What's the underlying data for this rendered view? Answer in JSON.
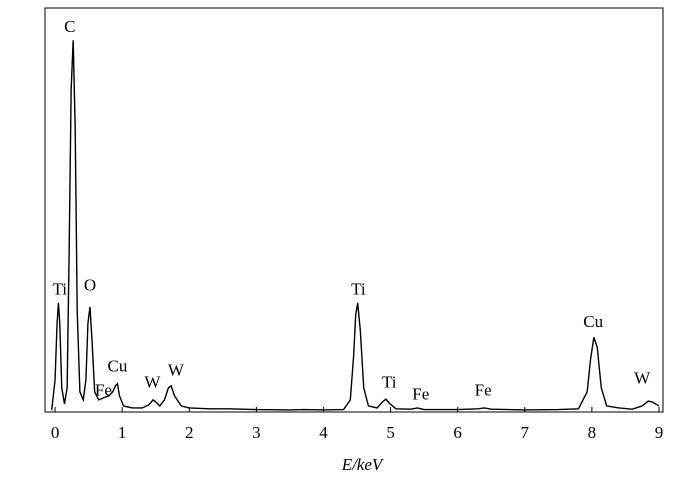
{
  "chart_data": {
    "type": "line",
    "x_label": "E/keV",
    "x": [
      -0.05,
      0.0,
      0.03,
      0.05,
      0.07,
      0.1,
      0.14,
      0.18,
      0.21,
      0.24,
      0.27,
      0.3,
      0.33,
      0.37,
      0.42,
      0.46,
      0.49,
      0.52,
      0.55,
      0.59,
      0.65,
      0.72,
      0.8,
      0.86,
      0.9,
      0.93,
      0.96,
      1.02,
      1.15,
      1.3,
      1.4,
      1.46,
      1.5,
      1.56,
      1.63,
      1.69,
      1.73,
      1.78,
      1.88,
      2.0,
      2.3,
      2.6,
      3.0,
      3.5,
      3.7,
      4.0,
      4.3,
      4.4,
      4.45,
      4.48,
      4.51,
      4.55,
      4.6,
      4.67,
      4.8,
      4.88,
      4.93,
      4.98,
      5.08,
      5.3,
      5.4,
      5.5,
      6.0,
      6.3,
      6.4,
      6.5,
      7.0,
      7.5,
      7.8,
      7.93,
      7.98,
      8.03,
      8.08,
      8.14,
      8.22,
      8.4,
      8.6,
      8.75,
      8.84,
      8.9,
      9.0
    ],
    "series": [
      {
        "color": "#000000",
        "values": [
          0.5,
          8,
          22,
          27,
          22,
          6,
          2,
          6,
          40,
          80,
          92,
          70,
          25,
          5,
          3,
          8,
          22,
          26,
          18,
          5,
          3,
          3.5,
          4,
          5,
          6.5,
          7,
          4,
          1.5,
          1,
          1,
          1.8,
          3,
          2.5,
          1.5,
          3,
          6,
          6.5,
          4,
          1.5,
          1,
          0.8,
          0.8,
          0.6,
          0.5,
          0.6,
          0.5,
          0.6,
          3,
          14,
          24,
          27,
          20,
          6,
          1.5,
          1,
          2.5,
          3.2,
          2.2,
          0.8,
          0.7,
          1,
          0.6,
          0.6,
          0.8,
          1,
          0.7,
          0.5,
          0.6,
          0.8,
          5,
          13,
          18.5,
          16,
          6,
          1.5,
          1,
          0.7,
          1.5,
          2.7,
          2.5,
          1.5
        ]
      }
    ],
    "xlim": [
      -0.15,
      9.06
    ],
    "ylim": [
      0,
      100
    ],
    "xticks": [
      0,
      1,
      2,
      3,
      4,
      5,
      6,
      7,
      8,
      9
    ],
    "annotations": [
      {
        "text": "C",
        "x": 0.22,
        "y": 95
      },
      {
        "text": "Ti",
        "x": 0.07,
        "y": 30
      },
      {
        "text": "O",
        "x": 0.52,
        "y": 31
      },
      {
        "text": "Fe",
        "x": 0.72,
        "y": 5
      },
      {
        "text": "Cu",
        "x": 0.93,
        "y": 11
      },
      {
        "text": "W",
        "x": 1.45,
        "y": 7
      },
      {
        "text": "W",
        "x": 1.8,
        "y": 10
      },
      {
        "text": "Ti",
        "x": 4.52,
        "y": 30
      },
      {
        "text": "Ti",
        "x": 4.98,
        "y": 7
      },
      {
        "text": "Fe",
        "x": 5.45,
        "y": 4
      },
      {
        "text": "Fe",
        "x": 6.38,
        "y": 5
      },
      {
        "text": "Cu",
        "x": 8.02,
        "y": 22
      },
      {
        "text": "W",
        "x": 8.75,
        "y": 8
      }
    ]
  }
}
